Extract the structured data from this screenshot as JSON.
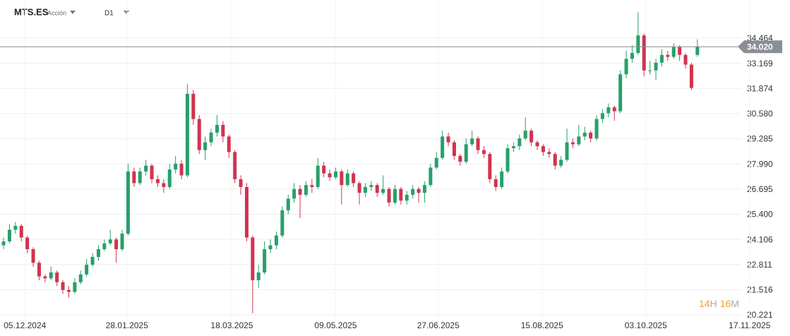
{
  "chart_data": {
    "type": "candlestick",
    "symbol": "MTS.ES",
    "asset_type": "Acción",
    "timeframe": "D1",
    "countdown": {
      "hours": 14,
      "hours_unit": "H",
      "minutes": 16,
      "minutes_unit": "M"
    },
    "last_price": {
      "value": 34.02,
      "label": "34.020"
    },
    "up_color": "#27a06b",
    "down_color": "#d0344f",
    "grid": true,
    "xlim": [
      -0.6,
      124.4
    ],
    "ylim": [
      19.858,
      36.426
    ],
    "xticks": [
      {
        "value": 3.6,
        "label": "05.12.2024"
      },
      {
        "value": 20.8,
        "label": "28.01.2025"
      },
      {
        "value": 38.5,
        "label": "18.03.2025"
      },
      {
        "value": 56,
        "label": "09.05.2025"
      },
      {
        "value": 73.3,
        "label": "27.06.2025"
      },
      {
        "value": 90.8,
        "label": "15.08.2025"
      },
      {
        "value": 108.3,
        "label": "03.10.2025"
      },
      {
        "value": 125.8,
        "label": "17.11.2025"
      }
    ],
    "yticks": [
      34.464,
      33.169,
      31.874,
      {
        "value": 30.58,
        "label": "30.580"
      },
      29.285,
      {
        "value": 27.99,
        "label": "27.990"
      },
      26.695,
      {
        "value": 25.4,
        "label": "25.400"
      },
      24.106,
      22.811,
      21.516,
      20.221
    ],
    "candles": [
      [
        23.8,
        24.2,
        23.6,
        24.0
      ],
      [
        24.0,
        24.9,
        23.9,
        24.6
      ],
      [
        24.6,
        25.0,
        24.4,
        24.8
      ],
      [
        24.8,
        24.9,
        24.0,
        24.2
      ],
      [
        24.2,
        24.3,
        23.4,
        23.6
      ],
      [
        23.6,
        23.7,
        22.7,
        22.9
      ],
      [
        22.9,
        23.0,
        22.0,
        22.2
      ],
      [
        22.2,
        22.3,
        21.9,
        22.1
      ],
      [
        22.1,
        22.7,
        22.0,
        22.4
      ],
      [
        22.4,
        22.5,
        21.7,
        21.9
      ],
      [
        21.9,
        22.0,
        21.3,
        21.5
      ],
      [
        21.5,
        21.7,
        21.1,
        21.4
      ],
      [
        21.4,
        22.1,
        21.3,
        21.9
      ],
      [
        21.9,
        22.5,
        21.8,
        22.3
      ],
      [
        22.3,
        23.1,
        22.2,
        22.8
      ],
      [
        22.8,
        23.4,
        22.7,
        23.2
      ],
      [
        23.2,
        23.8,
        23.0,
        23.6
      ],
      [
        23.6,
        24.1,
        23.5,
        23.9
      ],
      [
        23.9,
        24.6,
        23.8,
        24.1
      ],
      [
        24.1,
        24.2,
        22.9,
        23.6
      ],
      [
        23.6,
        24.6,
        23.5,
        24.4
      ],
      [
        24.4,
        28.0,
        24.3,
        27.6
      ],
      [
        27.6,
        27.8,
        26.8,
        27.0
      ],
      [
        27.0,
        27.8,
        26.9,
        27.6
      ],
      [
        27.6,
        28.2,
        27.4,
        27.9
      ],
      [
        27.9,
        28.0,
        27.0,
        27.2
      ],
      [
        27.2,
        27.4,
        26.8,
        27.0
      ],
      [
        27.0,
        27.2,
        26.5,
        26.8
      ],
      [
        26.8,
        28.0,
        26.7,
        27.7
      ],
      [
        27.7,
        28.4,
        27.5,
        28.0
      ],
      [
        28.0,
        28.2,
        27.2,
        27.4
      ],
      [
        27.4,
        32.1,
        27.3,
        31.6
      ],
      [
        31.6,
        31.8,
        30.0,
        30.3
      ],
      [
        30.3,
        30.5,
        28.5,
        28.7
      ],
      [
        28.7,
        29.4,
        28.2,
        29.1
      ],
      [
        29.1,
        29.8,
        28.9,
        29.6
      ],
      [
        29.6,
        30.5,
        29.4,
        30.0
      ],
      [
        30.0,
        30.2,
        29.1,
        29.4
      ],
      [
        29.4,
        29.5,
        28.3,
        28.6
      ],
      [
        28.6,
        28.7,
        27.0,
        27.2
      ],
      [
        27.2,
        27.4,
        26.4,
        26.8
      ],
      [
        26.8,
        27.0,
        24.0,
        24.2
      ],
      [
        24.2,
        24.3,
        20.3,
        22.0
      ],
      [
        22.0,
        22.8,
        21.6,
        22.4
      ],
      [
        22.4,
        24.0,
        22.3,
        23.6
      ],
      [
        23.6,
        24.1,
        23.4,
        23.8
      ],
      [
        23.8,
        24.5,
        23.6,
        24.3
      ],
      [
        24.3,
        25.8,
        24.2,
        25.6
      ],
      [
        25.6,
        26.4,
        25.4,
        26.2
      ],
      [
        26.2,
        27.0,
        26.0,
        26.7
      ],
      [
        26.7,
        26.9,
        25.2,
        26.4
      ],
      [
        26.4,
        27.1,
        26.3,
        26.9
      ],
      [
        26.9,
        27.2,
        26.5,
        26.8
      ],
      [
        26.8,
        28.3,
        26.7,
        27.9
      ],
      [
        27.9,
        28.1,
        27.3,
        27.5
      ],
      [
        27.5,
        27.7,
        27.1,
        27.3
      ],
      [
        27.3,
        27.8,
        27.2,
        27.6
      ],
      [
        27.6,
        27.7,
        25.9,
        26.9
      ],
      [
        26.9,
        27.7,
        26.8,
        27.5
      ],
      [
        27.5,
        27.6,
        26.8,
        27.0
      ],
      [
        27.0,
        27.1,
        25.9,
        26.5
      ],
      [
        26.5,
        27.0,
        26.3,
        26.8
      ],
      [
        26.8,
        27.1,
        26.6,
        26.9
      ],
      [
        26.9,
        27.0,
        26.3,
        26.5
      ],
      [
        26.5,
        27.4,
        26.4,
        26.7
      ],
      [
        26.7,
        26.8,
        25.8,
        26.0
      ],
      [
        26.0,
        26.9,
        25.9,
        26.7
      ],
      [
        26.7,
        26.8,
        25.9,
        26.1
      ],
      [
        26.1,
        26.6,
        25.9,
        26.4
      ],
      [
        26.4,
        26.9,
        26.2,
        26.7
      ],
      [
        26.7,
        26.8,
        26.0,
        26.5
      ],
      [
        26.5,
        27.1,
        26.0,
        26.9
      ],
      [
        26.9,
        28.0,
        26.8,
        27.8
      ],
      [
        27.8,
        28.6,
        27.7,
        28.3
      ],
      [
        28.3,
        29.7,
        28.2,
        29.4
      ],
      [
        29.4,
        29.6,
        28.9,
        29.1
      ],
      [
        29.1,
        29.2,
        28.2,
        28.4
      ],
      [
        28.4,
        28.5,
        27.9,
        28.1
      ],
      [
        28.1,
        29.3,
        28.0,
        29.0
      ],
      [
        29.0,
        29.7,
        28.9,
        29.3
      ],
      [
        29.3,
        29.4,
        28.5,
        28.7
      ],
      [
        28.7,
        28.9,
        28.3,
        28.5
      ],
      [
        28.5,
        28.6,
        27.0,
        27.2
      ],
      [
        27.2,
        27.4,
        26.6,
        26.8
      ],
      [
        26.8,
        27.8,
        26.7,
        27.6
      ],
      [
        27.6,
        29.0,
        27.5,
        28.8
      ],
      [
        28.8,
        29.1,
        28.6,
        28.9
      ],
      [
        28.9,
        29.5,
        28.7,
        29.3
      ],
      [
        29.3,
        30.4,
        29.2,
        29.7
      ],
      [
        29.7,
        29.8,
        28.9,
        29.1
      ],
      [
        29.1,
        29.2,
        28.7,
        28.9
      ],
      [
        28.9,
        29.0,
        28.4,
        28.6
      ],
      [
        28.6,
        28.8,
        28.3,
        28.5
      ],
      [
        28.5,
        28.6,
        27.7,
        27.9
      ],
      [
        27.9,
        28.4,
        27.8,
        28.2
      ],
      [
        28.2,
        29.8,
        28.1,
        29.1
      ],
      [
        29.1,
        29.3,
        28.8,
        29.0
      ],
      [
        29.0,
        30.0,
        28.9,
        29.4
      ],
      [
        29.4,
        29.9,
        29.2,
        29.6
      ],
      [
        29.6,
        29.7,
        29.1,
        29.3
      ],
      [
        29.3,
        30.5,
        29.2,
        30.3
      ],
      [
        30.3,
        30.8,
        30.1,
        30.6
      ],
      [
        30.6,
        31.1,
        30.4,
        30.9
      ],
      [
        30.9,
        31.0,
        30.2,
        30.7
      ],
      [
        30.7,
        32.8,
        30.6,
        32.6
      ],
      [
        32.6,
        33.8,
        32.4,
        33.4
      ],
      [
        33.4,
        34.1,
        33.2,
        33.7
      ],
      [
        33.7,
        35.8,
        33.6,
        34.6
      ],
      [
        34.6,
        34.7,
        32.5,
        32.8
      ],
      [
        32.8,
        33.3,
        32.6,
        32.8
      ],
      [
        32.8,
        33.4,
        32.3,
        33.2
      ],
      [
        33.2,
        33.9,
        33.0,
        33.6
      ],
      [
        33.6,
        33.8,
        33.3,
        33.5
      ],
      [
        33.5,
        34.2,
        33.4,
        34.0
      ],
      [
        34.0,
        34.1,
        33.3,
        33.6
      ],
      [
        33.6,
        33.7,
        32.9,
        33.1
      ],
      [
        33.1,
        33.2,
        31.8,
        31.9
      ],
      [
        33.6,
        34.4,
        33.5,
        34.02
      ]
    ]
  }
}
